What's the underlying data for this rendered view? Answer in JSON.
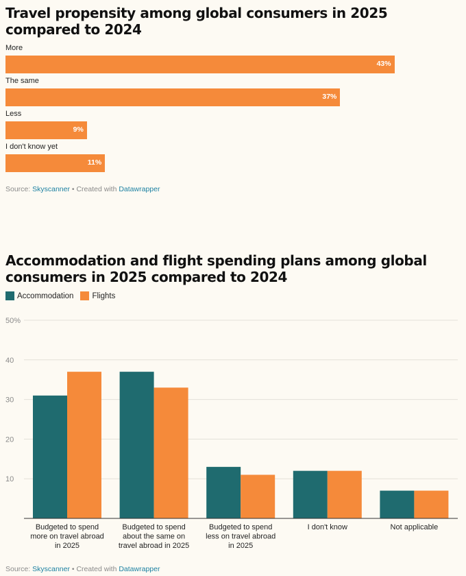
{
  "chart1": {
    "title": "Travel propensity among global consumers in 2025 compared to 2024",
    "footer_prefix": "Source: ",
    "footer_source": "Skyscanner",
    "footer_mid": " • Created with ",
    "footer_tool": "Datawrapper"
  },
  "chart2": {
    "title": "Accommodation and flight spending plans among global consumers in 2025 compared to 2024",
    "footer_prefix": "Source: ",
    "footer_source": "Skyscanner",
    "footer_mid": " • Created with ",
    "footer_tool": "Datawrapper"
  },
  "chart_data": [
    {
      "type": "bar",
      "orientation": "horizontal",
      "title": "Travel propensity among global consumers in 2025 compared to 2024",
      "categories": [
        "More",
        "The same",
        "Less",
        "I don't know yet"
      ],
      "values": [
        43,
        37,
        9,
        11
      ],
      "value_labels": [
        "43%",
        "37%",
        "9%",
        "11%"
      ],
      "unit": "%",
      "color": "#f58a3a",
      "xlim": [
        0,
        50
      ],
      "grid": false
    },
    {
      "type": "bar",
      "orientation": "vertical",
      "title": "Accommodation and flight spending plans among global consumers in 2025 compared to 2024",
      "categories": [
        [
          "Budgeted to spend",
          "more on travel abroad",
          "in 2025"
        ],
        [
          "Budgeted to spend",
          "about the same on",
          "travel abroad in 2025"
        ],
        [
          "Budgeted to spend",
          "less on travel abroad",
          "in 2025"
        ],
        [
          "I don't know"
        ],
        [
          "Not applicable"
        ]
      ],
      "series": [
        {
          "name": "Accommodation",
          "color": "#1f6b6f",
          "values": [
            31,
            37,
            13,
            12,
            7
          ]
        },
        {
          "name": "Flights",
          "color": "#f58a3a",
          "values": [
            37,
            33,
            11,
            12,
            7
          ]
        }
      ],
      "yticks": [
        "10",
        "20",
        "30",
        "40",
        "50%"
      ],
      "ylim": [
        0,
        50
      ],
      "grid": true,
      "legend": "top-left"
    }
  ]
}
